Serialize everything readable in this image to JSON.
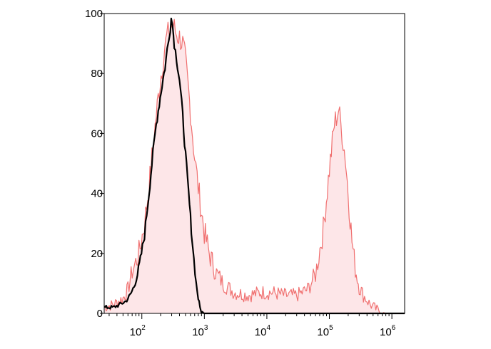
{
  "chart_data": {
    "type": "area",
    "title": "",
    "xlabel": "",
    "ylabel": "",
    "x_scale": "log",
    "xlim": [
      25,
      1600000
    ],
    "ylim": [
      0,
      100
    ],
    "grid": false,
    "legend": "none",
    "x_ticks": [
      {
        "value": 100,
        "base": "10",
        "exp": "2"
      },
      {
        "value": 1000,
        "base": "10",
        "exp": "3"
      },
      {
        "value": 10000,
        "base": "10",
        "exp": "4"
      },
      {
        "value": 100000,
        "base": "10",
        "exp": "5"
      },
      {
        "value": 1000000,
        "base": "10",
        "exp": "6"
      }
    ],
    "y_ticks": [
      {
        "value": 0,
        "label": "0"
      },
      {
        "value": 20,
        "label": "20"
      },
      {
        "value": 40,
        "label": "40"
      },
      {
        "value": 60,
        "label": "60"
      },
      {
        "value": 80,
        "label": "80"
      },
      {
        "value": 100,
        "label": "100"
      }
    ],
    "series": [
      {
        "style": "filled-outline",
        "stroke_color": "#f07070",
        "fill_color": "#fde6e8",
        "points": [
          [
            25,
            2
          ],
          [
            35,
            3
          ],
          [
            50,
            5
          ],
          [
            60,
            8
          ],
          [
            70,
            14
          ],
          [
            80,
            17
          ],
          [
            90,
            20
          ],
          [
            110,
            30
          ],
          [
            130,
            42
          ],
          [
            150,
            55
          ],
          [
            170,
            66
          ],
          [
            190,
            75
          ],
          [
            210,
            82
          ],
          [
            230,
            88
          ],
          [
            250,
            92
          ],
          [
            275,
            94
          ],
          [
            300,
            96
          ],
          [
            330,
            95
          ],
          [
            360,
            93
          ],
          [
            400,
            92
          ],
          [
            450,
            90
          ],
          [
            500,
            84
          ],
          [
            560,
            74
          ],
          [
            620,
            64
          ],
          [
            700,
            52
          ],
          [
            800,
            42
          ],
          [
            900,
            34
          ],
          [
            1000,
            27
          ],
          [
            1200,
            20
          ],
          [
            1500,
            14
          ],
          [
            2000,
            10
          ],
          [
            3000,
            7
          ],
          [
            5000,
            6
          ],
          [
            8000,
            7
          ],
          [
            12000,
            7
          ],
          [
            20000,
            6
          ],
          [
            30000,
            6
          ],
          [
            45000,
            8
          ],
          [
            60000,
            13
          ],
          [
            80000,
            28
          ],
          [
            100000,
            48
          ],
          [
            120000,
            63
          ],
          [
            140000,
            68
          ],
          [
            160000,
            60
          ],
          [
            180000,
            52
          ],
          [
            200000,
            40
          ],
          [
            230000,
            24
          ],
          [
            260000,
            15
          ],
          [
            300000,
            9
          ],
          [
            350000,
            6
          ],
          [
            450000,
            3
          ],
          [
            600000,
            1
          ],
          [
            800000,
            0
          ],
          [
            1600000,
            0
          ]
        ]
      },
      {
        "style": "line",
        "stroke_color": "#000000",
        "points": [
          [
            25,
            2
          ],
          [
            35,
            2
          ],
          [
            45,
            3
          ],
          [
            55,
            4
          ],
          [
            65,
            6
          ],
          [
            75,
            9
          ],
          [
            85,
            13
          ],
          [
            95,
            18
          ],
          [
            110,
            26
          ],
          [
            130,
            40
          ],
          [
            150,
            53
          ],
          [
            170,
            63
          ],
          [
            190,
            70
          ],
          [
            210,
            76
          ],
          [
            235,
            82
          ],
          [
            255,
            88
          ],
          [
            270,
            91
          ],
          [
            285,
            95
          ],
          [
            295,
            100
          ],
          [
            310,
            96
          ],
          [
            330,
            90
          ],
          [
            360,
            85
          ],
          [
            400,
            78
          ],
          [
            450,
            66
          ],
          [
            500,
            53
          ],
          [
            560,
            40
          ],
          [
            620,
            28
          ],
          [
            680,
            18
          ],
          [
            740,
            10
          ],
          [
            800,
            5
          ],
          [
            850,
            2
          ],
          [
            900,
            0.5
          ],
          [
            1000,
            0
          ],
          [
            1600000,
            0
          ]
        ]
      }
    ]
  }
}
